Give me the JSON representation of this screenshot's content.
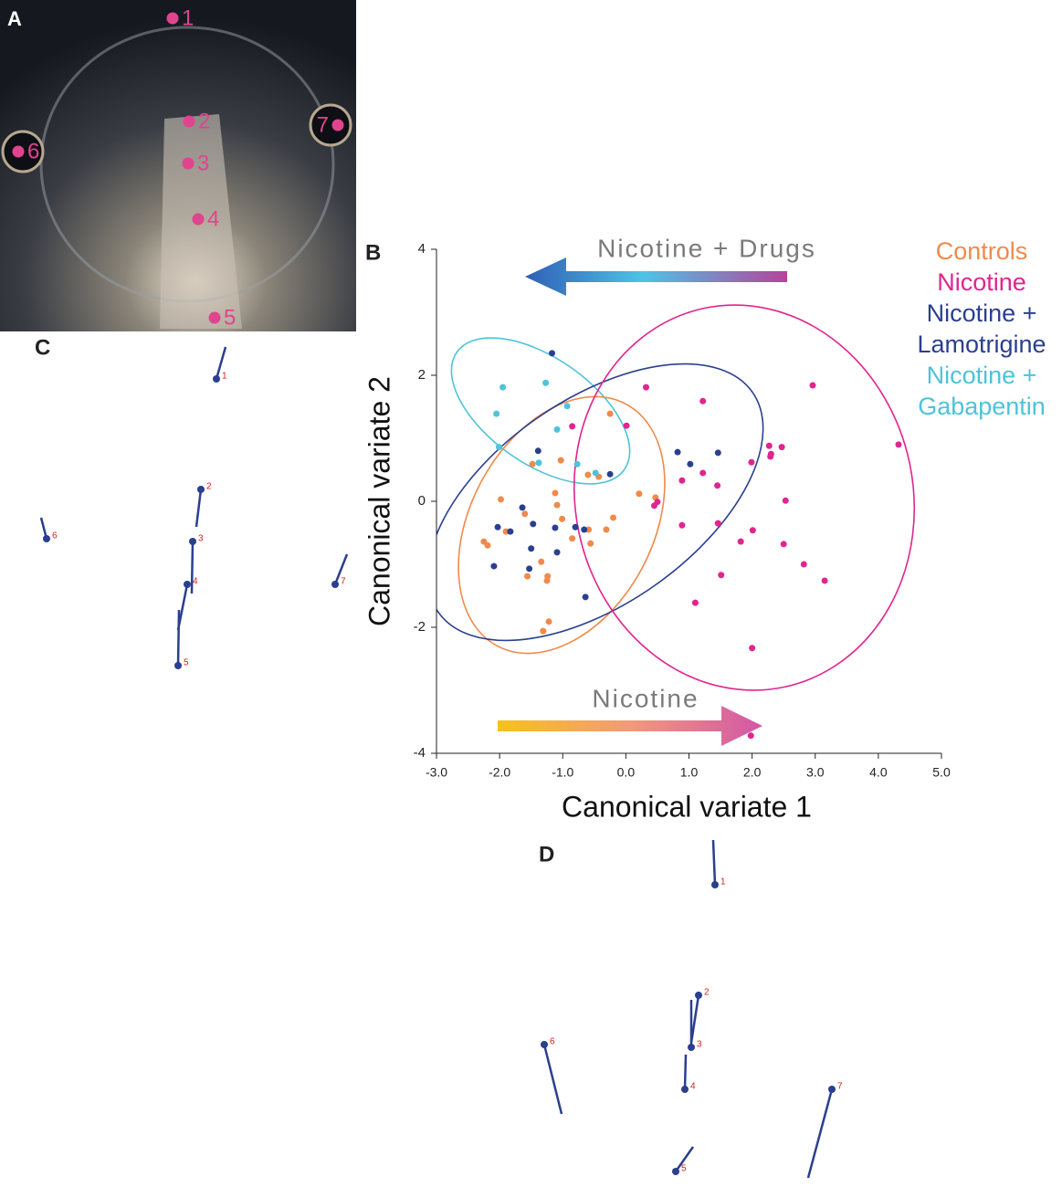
{
  "panels": {
    "a": "A",
    "b": "B",
    "c": "C",
    "d": "D"
  },
  "photo_landmarks": [
    "1",
    "2",
    "3",
    "4",
    "5",
    "6",
    "7"
  ],
  "chart_data": {
    "type": "scatter",
    "x_label": "Canonical variate 1",
    "y_label": "Canonical variate 2",
    "annotations": [
      "Nicotine + Drugs",
      "Nicotine"
    ],
    "xlim": [
      -3,
      5
    ],
    "ylim": [
      -4,
      4
    ],
    "xticks": [
      {
        "value": -3,
        "label": "-3.0"
      },
      {
        "value": -2,
        "label": "-2.0"
      },
      {
        "value": -1,
        "label": "-1.0"
      },
      {
        "value": 0,
        "label": "0.0"
      },
      {
        "value": 1,
        "label": "1.0"
      },
      {
        "value": 2,
        "label": "2.0"
      },
      {
        "value": 3,
        "label": "3.0"
      },
      {
        "value": 4,
        "label": "4.0"
      },
      {
        "value": 5,
        "label": "5.0"
      }
    ],
    "yticks": [
      4,
      2,
      0,
      -2,
      -4
    ],
    "series": [
      {
        "name": "Controls",
        "color": "#f08a4b",
        "x": [
          -2.25,
          -2.19,
          -1.98,
          -1.9,
          -1.6,
          -1.56,
          -1.48,
          -1.34,
          -1.25,
          -1.22,
          -1.31,
          -1.24,
          -1.12,
          -1.09,
          -1.03,
          -1.01,
          -0.85,
          -0.6,
          -0.59,
          -0.56,
          -0.43,
          -0.31,
          -0.25,
          -0.2,
          0.21,
          0.47
        ],
        "y": [
          -0.64,
          -0.7,
          0.03,
          -0.48,
          -0.2,
          -1.19,
          0.59,
          -0.96,
          -1.26,
          -1.91,
          -2.06,
          -1.19,
          0.13,
          -0.06,
          0.65,
          -0.28,
          -0.59,
          0.42,
          -0.45,
          -0.67,
          0.39,
          -0.45,
          1.39,
          -0.26,
          0.12,
          0.06
        ]
      },
      {
        "name": "Nicotine",
        "color": "#e0258f",
        "x": [
          0.32,
          1.22,
          2.96,
          4.32,
          2.27,
          2.3,
          2.47,
          2.29,
          1.99,
          2.53,
          1.45,
          1.22,
          0.89,
          0.5,
          0.45,
          0.89,
          1.46,
          1.82,
          2.01,
          2.5,
          2.82,
          3.15,
          1.51,
          1.1,
          2.0,
          1.98,
          0.01,
          -0.85
        ],
        "y": [
          1.81,
          1.59,
          1.84,
          0.9,
          0.88,
          0.75,
          0.86,
          0.71,
          0.62,
          0.01,
          0.25,
          0.45,
          0.33,
          -0.01,
          -0.07,
          -0.38,
          -0.35,
          -0.64,
          -0.46,
          -0.68,
          -1.0,
          -1.26,
          -1.17,
          -1.61,
          -2.33,
          -3.72,
          1.2,
          1.19
        ]
      },
      {
        "name": "Nicotine + Lamotrigine",
        "color": "#2b3f8f",
        "x": [
          -1.17,
          -2.03,
          -2.09,
          -1.83,
          -1.64,
          -1.47,
          -1.5,
          -1.53,
          -1.39,
          -1.12,
          -1.09,
          -0.8,
          -0.66,
          -0.64,
          -0.25,
          0.82,
          1.02,
          1.46
        ],
        "y": [
          2.35,
          -0.41,
          -1.03,
          -0.48,
          -0.1,
          -0.36,
          -0.75,
          -1.07,
          0.8,
          -0.42,
          -0.81,
          -0.41,
          -0.45,
          -1.52,
          0.43,
          0.78,
          0.59,
          0.77
        ]
      },
      {
        "name": "Nicotine + Gabapentin",
        "color": "#4ec3d9",
        "x": [
          -1.95,
          -2.05,
          -2.01,
          -1.27,
          -0.93,
          -1.09,
          -1.38,
          -0.77,
          -0.48
        ],
        "y": [
          1.81,
          1.39,
          0.86,
          1.88,
          1.51,
          1.14,
          0.61,
          0.59,
          0.45
        ]
      }
    ]
  },
  "vectors_c": [
    "1",
    "2",
    "3",
    "4",
    "5",
    "6",
    "7"
  ],
  "vectors_d": [
    "1",
    "2",
    "3",
    "4",
    "5",
    "6",
    "7"
  ]
}
